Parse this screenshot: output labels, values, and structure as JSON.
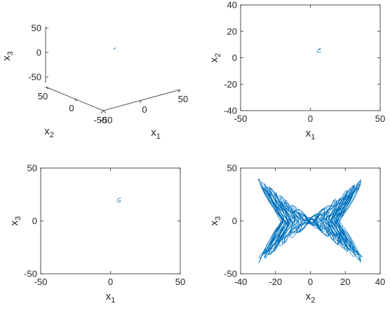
{
  "figure": {
    "trace_color": "#0072BD",
    "axis_color": "#262626"
  },
  "chart_data": [
    {
      "panel": "3d",
      "type": "line",
      "title": "",
      "axes": [
        "x1",
        "x2",
        "x3"
      ],
      "x1_label": "x",
      "x1_sub": "1",
      "x2_label": "x",
      "x2_sub": "2",
      "x3_label": "x",
      "x3_sub": "3",
      "x1_ticks": [
        -50,
        0,
        50
      ],
      "x2_ticks": [
        -50,
        0,
        50
      ],
      "x3_ticks": [
        -50,
        0,
        50
      ],
      "x1_tick_labels": [
        "-50",
        "0",
        "50"
      ],
      "x2_tick_labels": [
        "-50",
        "0",
        "50"
      ],
      "x3_tick_labels": [
        "-50",
        "0",
        "50"
      ],
      "grid": false
    },
    {
      "panel": "x1-x2",
      "type": "line",
      "title": "",
      "xlabel": "x",
      "xsub": "1",
      "ylabel": "x",
      "ysub": "2",
      "xlim": [
        -50,
        50
      ],
      "ylim": [
        -40,
        40
      ],
      "xticks": [
        -50,
        0,
        50
      ],
      "yticks": [
        -40,
        -20,
        0,
        20,
        40
      ],
      "xtick_labels": [
        "-50",
        "0",
        "50"
      ],
      "ytick_labels": [
        "-40",
        "-20",
        "0",
        "20",
        "40"
      ],
      "grid": false
    },
    {
      "panel": "x1-x3",
      "type": "line",
      "title": "",
      "xlabel": "x",
      "xsub": "1",
      "ylabel": "x",
      "ysub": "3",
      "xlim": [
        -50,
        50
      ],
      "ylim": [
        -50,
        50
      ],
      "xticks": [
        -50,
        0,
        50
      ],
      "yticks": [
        -50,
        0,
        50
      ],
      "xtick_labels": [
        "-50",
        "0",
        "50"
      ],
      "ytick_labels": [
        "-50",
        "0",
        "50"
      ],
      "grid": false
    },
    {
      "panel": "x2-x3",
      "type": "line",
      "title": "",
      "xlabel": "x",
      "xsub": "2",
      "ylabel": "x",
      "ysub": "3",
      "xlim": [
        -40,
        40
      ],
      "ylim": [
        -50,
        50
      ],
      "xticks": [
        -40,
        -20,
        0,
        20,
        40
      ],
      "yticks": [
        -50,
        0,
        50
      ],
      "xtick_labels": [
        "-40",
        "-20",
        "0",
        "20",
        "40"
      ],
      "ytick_labels": [
        "-50",
        "0",
        "50"
      ],
      "grid": false
    }
  ]
}
